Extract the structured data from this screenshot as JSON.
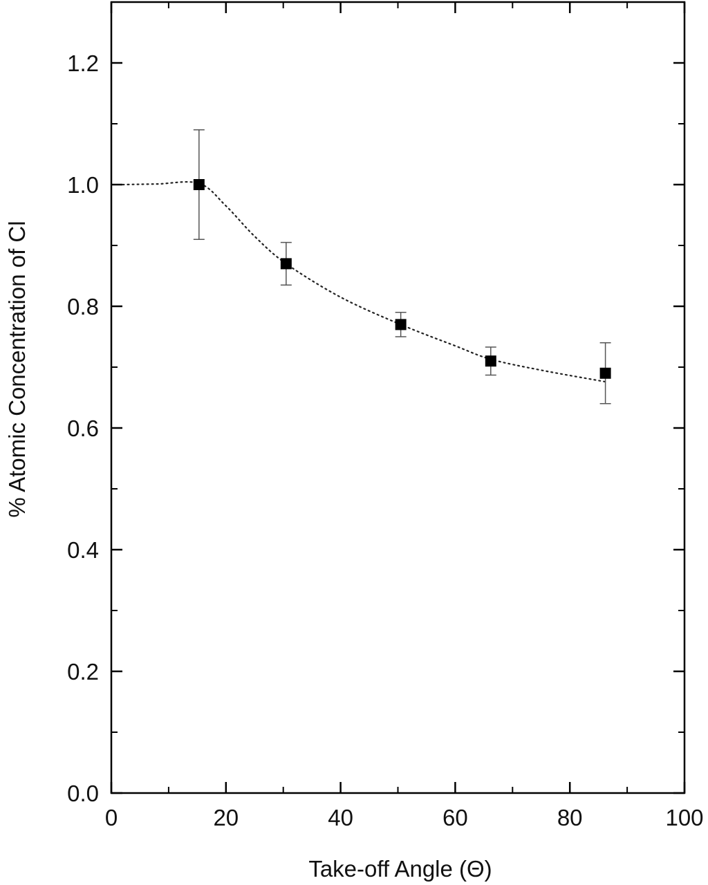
{
  "chart_data": {
    "type": "scatter",
    "title": "",
    "xlabel": "Take-off Angle (Θ)",
    "ylabel": "% Atomic Concentration of Cl",
    "xlim": [
      0,
      100
    ],
    "ylim": [
      0.0,
      1.3
    ],
    "x_ticks": [
      0,
      20,
      40,
      60,
      80,
      100
    ],
    "x_tick_labels": [
      "0",
      "20",
      "40",
      "60",
      "80",
      "100"
    ],
    "y_ticks": [
      0.0,
      0.2,
      0.4,
      0.6,
      0.8,
      1.0,
      1.2
    ],
    "y_tick_labels": [
      "0.0",
      "0.2",
      "0.4",
      "0.6",
      "0.8",
      "1.0",
      "1.2"
    ],
    "x_minor_step": 10,
    "y_minor_step": 0.1,
    "grid": false,
    "legend": "none",
    "marker": "square",
    "colors": {
      "marker": "#000000",
      "axis": "#000000",
      "trend": "#222222",
      "error_bar": "#555555"
    },
    "series": [
      {
        "x": [
          15.3,
          30.5,
          50.5,
          66.2,
          86.2
        ],
        "y": [
          1.0,
          0.87,
          0.77,
          0.71,
          0.69
        ],
        "y_err": [
          0.09,
          0.035,
          0.02,
          0.023,
          0.05
        ]
      }
    ],
    "trend_line": {
      "style": "dotted",
      "x": [
        2,
        8,
        15.3,
        20,
        25,
        30.5,
        40,
        50.5,
        60,
        66.2,
        75,
        86.2
      ],
      "y": [
        1.0,
        1.001,
        1.002,
        0.965,
        0.915,
        0.87,
        0.815,
        0.77,
        0.735,
        0.713,
        0.695,
        0.676
      ]
    }
  }
}
